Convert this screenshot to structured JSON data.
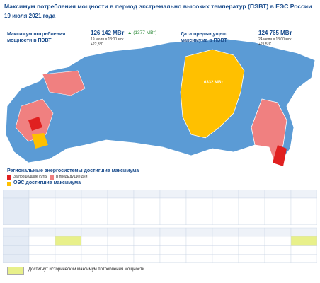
{
  "header": {
    "title": "Максимум потребления мощности в период экстремально высоких температур (ПЭВТ) в ЕЭС России",
    "date": "19 июля 2021 года"
  },
  "current": {
    "label": "Максимум потребления мощности в ПЭВТ",
    "value": "126 142 МВт",
    "delta": "▲ (1377 МВт)",
    "time": "19 июля в 13:00 мск",
    "temp": "+22,3°С"
  },
  "previous": {
    "label": "Дата предыдущего максимума в ПЭВТ",
    "value": "124 765 МВт",
    "time": "24 июля в 13:00 мск",
    "temp": "+21,5°С"
  },
  "map": {
    "siberia_label": "6332 МВт"
  },
  "legend": {
    "title": "Региональные энергосистемы достигшие максимума",
    "items": [
      "За прошедшие сутки",
      "В предыдущие дни"
    ],
    "oes": "ОЭС достигшие максимума"
  },
  "footer": {
    "note": "Достигнут исторический максимум потребления мощности"
  }
}
